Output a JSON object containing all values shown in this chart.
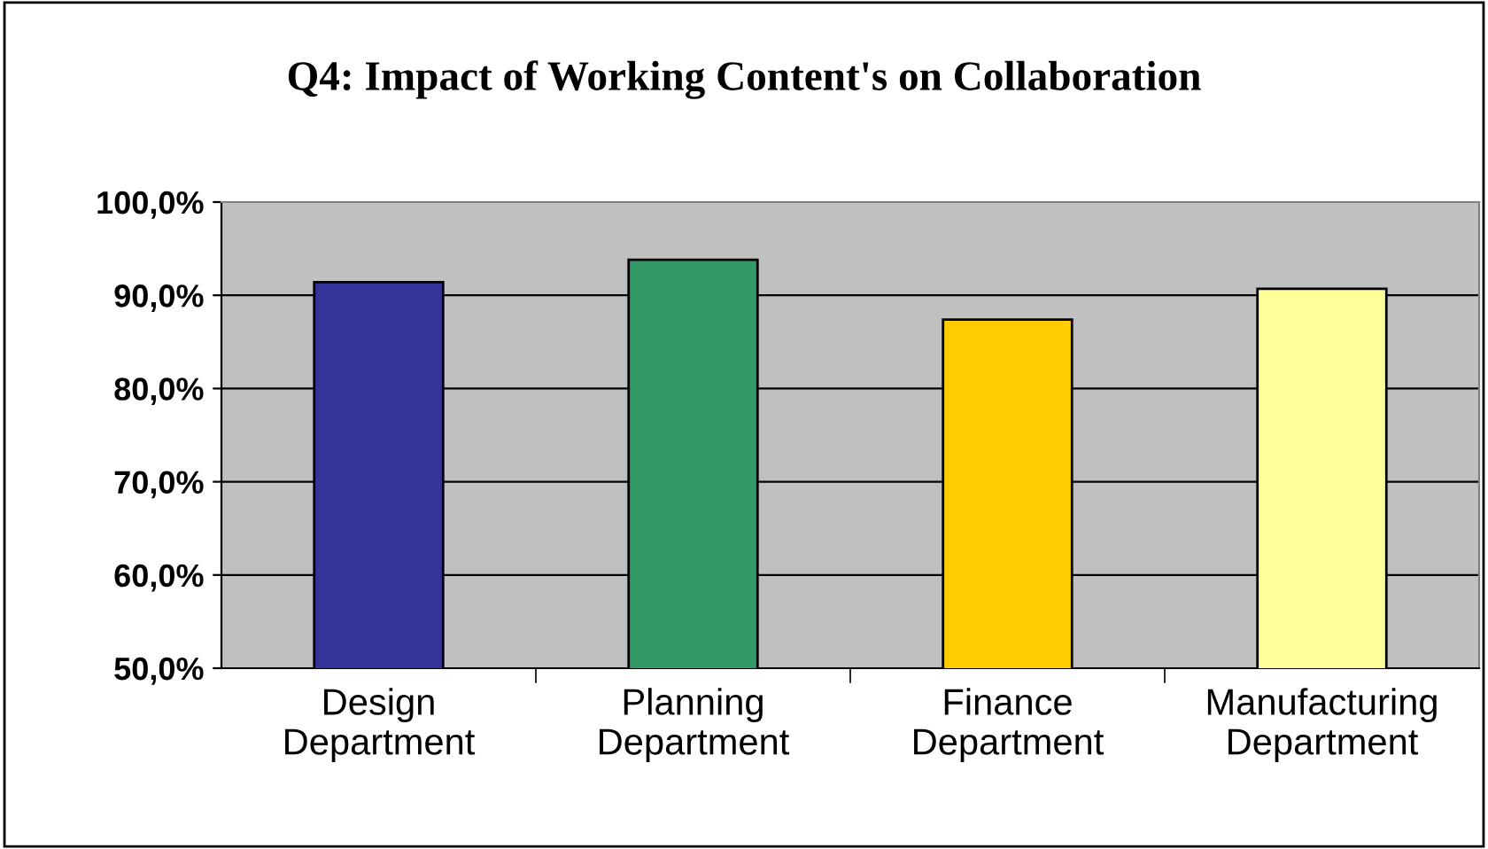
{
  "chart_data": {
    "type": "bar",
    "title": "Q4: Impact of Working Content's on Collaboration",
    "categories": [
      "Design\nDepartment",
      "Planning\nDepartment",
      "Finance\nDepartment",
      "Manufacturing\nDepartment"
    ],
    "values": [
      91.4,
      93.8,
      87.4,
      90.7
    ],
    "colors": [
      "#333399",
      "#339966",
      "#ffcc00",
      "#ffff99"
    ],
    "ylim": [
      50,
      100
    ],
    "yticks": [
      {
        "value": 50,
        "label": "50,0%"
      },
      {
        "value": 60,
        "label": "60,0%"
      },
      {
        "value": 70,
        "label": "70,0%"
      },
      {
        "value": 80,
        "label": "80,0%"
      },
      {
        "value": 90,
        "label": "90,0%"
      },
      {
        "value": 100,
        "label": "100,0%"
      }
    ],
    "grid": "y"
  }
}
